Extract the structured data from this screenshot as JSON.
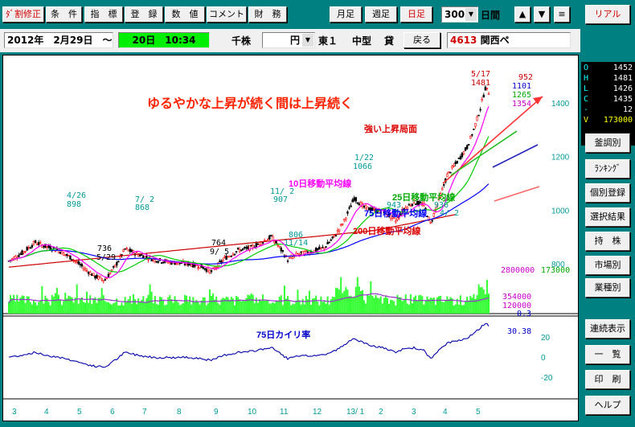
{
  "toolbar": {
    "buttons": [
      "ﾀﾞ割修正",
      "条　件",
      "指　標",
      "登　録",
      "数　値",
      "コメント",
      "財　務"
    ],
    "period": [
      "月足",
      "週足",
      "日足"
    ],
    "days_value": "300",
    "days_label": "日間",
    "up_arrow": "▲",
    "down_arrow": "▼",
    "menu_glyph": "≡",
    "real_button": "リアル"
  },
  "info": {
    "date_from": "2012年　2月29日　～",
    "date_to": "20日　10:34",
    "unit_label": "千株",
    "currency": "円",
    "market": "東１",
    "size": "中型",
    "margin": "貸",
    "back_button": "戻る",
    "code": "4613",
    "name": "関西ペ"
  },
  "ohlc": [
    {
      "key": "O",
      "value": "1452"
    },
    {
      "key": "H",
      "value": "1481"
    },
    {
      "key": "L",
      "value": "1426"
    },
    {
      "key": "C",
      "value": "1435"
    },
    {
      "key": "-",
      "value": "12"
    },
    {
      "key": "V",
      "value": "173000"
    }
  ],
  "side_buttons": [
    "釜調別",
    "ﾗﾝｷﾝｸﾞ",
    "個別登録",
    "選択結果",
    "持　株",
    "市場別",
    "業種別",
    "連続表示",
    "一　覧",
    "印　刷",
    "ヘルプ"
  ],
  "chart_data": {
    "type": "line",
    "title": "ゆるやかな上昇が続く間は上昇続く",
    "price_axis": {
      "ticks": [
        800,
        1000,
        1200,
        1400
      ],
      "range": [
        650,
        1550
      ]
    },
    "volume_axis": {
      "labels": [
        "2800000",
        "354000",
        "120000",
        "0.3"
      ],
      "top_right": "173000"
    },
    "kairi_axis": {
      "ticks": [
        20,
        0,
        -20
      ],
      "current": "30.38"
    },
    "x_ticks": [
      "3",
      "4",
      "5",
      "6",
      "7",
      "8",
      "9",
      "10",
      "11",
      "12",
      "13/ 1",
      "2",
      "3",
      "4",
      "5"
    ],
    "annotations": {
      "strong_rise": "強い上昇局面",
      "ma10": "10日移動平均線",
      "ma25": "25日移動平均線",
      "ma75": "75日移動平均線",
      "ma200": "200日移動平均線",
      "kairi": "75日カイリ率"
    },
    "price_labels": [
      {
        "text": "4/26",
        "idx": 16,
        "value": 898
      },
      {
        "text": "898",
        "idx": 16,
        "value": 898
      },
      {
        "text": "7/ 2",
        "idx": 70,
        "value": 868
      },
      {
        "text": "868",
        "idx": 70,
        "value": 868
      },
      {
        "text": "11/ 2",
        "idx": 158,
        "value": 907
      },
      {
        "text": "907",
        "idx": 158,
        "value": 907
      },
      {
        "text": "1/22",
        "idx": 208,
        "value": 1066
      },
      {
        "text": "1066",
        "idx": 208,
        "value": 1066
      },
      {
        "text": "736",
        "idx": 58,
        "value": 736
      },
      {
        "text": "5/29",
        "idx": 58,
        "value": 736
      },
      {
        "text": "764",
        "idx": 122,
        "value": 764
      },
      {
        "text": "9/ 5",
        "idx": 122,
        "value": 764
      },
      {
        "text": "806",
        "idx": 168,
        "value": 806
      },
      {
        "text": "11/14",
        "idx": 168,
        "value": 806
      },
      {
        "text": "943",
        "idx": 233,
        "value": 943
      },
      {
        "text": "936",
        "idx": 254,
        "value": 936
      },
      {
        "text": "4/ 2",
        "idx": 254,
        "value": 936
      },
      {
        "text": "5/17",
        "idx": 285,
        "value": 1481
      },
      {
        "text": "1481",
        "idx": 285,
        "value": 1481
      },
      {
        "text": "952",
        "value": 952
      },
      {
        "text": "1101",
        "value": 1101
      },
      {
        "text": "1265",
        "value": 1265
      },
      {
        "text": "1354",
        "value": 1354
      }
    ],
    "series_colors": {
      "up_candle": "#ff0000",
      "down_candle": "#000000",
      "ma10": "#ff00ff",
      "ma25": "#00cc00",
      "ma75": "#0000ff",
      "ma200": "#cc0000",
      "volume": "#33ff33",
      "vol_avg": "#9933cc",
      "kairi": "#0000aa"
    }
  }
}
